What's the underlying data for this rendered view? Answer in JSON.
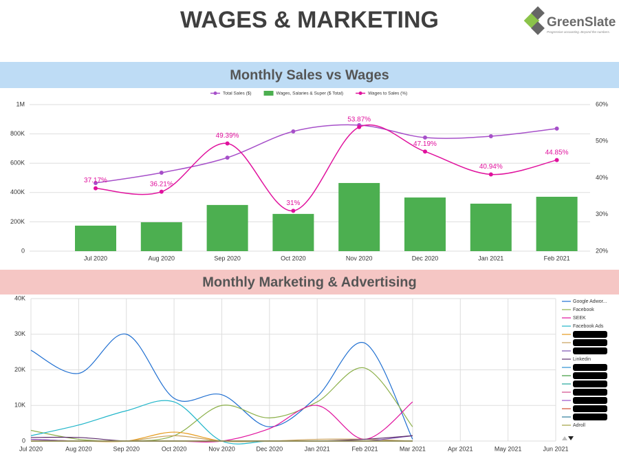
{
  "header": {
    "title": "WAGES & MARKETING",
    "logo": "GreenSlate",
    "tagline": "Progressive accounting. Beyond the numbers."
  },
  "chart_data": [
    {
      "type": "combo",
      "title": "Monthly Sales vs Wages",
      "categories": [
        "Jul 2020",
        "Aug 2020",
        "Sep 2020",
        "Oct 2020",
        "Nov 2020",
        "Dec 2020",
        "Jan 2021",
        "Feb 2021"
      ],
      "series": [
        {
          "name": "Total Sales ($)",
          "color": "#a64fc9",
          "kind": "line",
          "values": [
            465000,
            535000,
            638000,
            817000,
            860000,
            775000,
            784000,
            836000
          ]
        },
        {
          "name": "Wages, Salaries & Super ($ Total)",
          "color": "#4caf50",
          "kind": "bar",
          "values": [
            174000,
            197000,
            315000,
            254000,
            465000,
            366000,
            324000,
            371000
          ]
        },
        {
          "name": "Wages to Sales (%)",
          "color": "#e0119d",
          "kind": "line",
          "axis": "y2",
          "values": [
            37.17,
            36.21,
            49.39,
            31,
            53.87,
            47.19,
            40.94,
            44.85
          ],
          "value_labels": [
            "37.17%",
            "36.21%",
            "49.39%",
            "31%",
            "53.87%",
            "47.19%",
            "40.94%",
            "44.85%"
          ]
        }
      ],
      "ylim": [
        0,
        1000000
      ],
      "yticks": [
        0,
        {
          "value": 200000,
          "label": "200K"
        },
        {
          "value": 400000,
          "label": "400K"
        },
        {
          "value": 600000,
          "label": "600K"
        },
        {
          "value": 800000,
          "label": "800K"
        },
        {
          "value": 1000000,
          "label": "1M"
        }
      ],
      "y2lim": [
        20,
        60
      ],
      "y2ticks": [
        {
          "value": 20,
          "label": "20%"
        },
        {
          "value": 30,
          "label": "30%"
        },
        {
          "value": 40,
          "label": "40%"
        },
        {
          "value": 50,
          "label": "50%"
        },
        {
          "value": 60,
          "label": "60%"
        }
      ],
      "grid": true,
      "legend": "top"
    },
    {
      "type": "line",
      "title": "Monthly Marketing & Advertising",
      "categories": [
        "Jul 2020",
        "Aug 2020",
        "Sep 2020",
        "Oct 2020",
        "Nov 2020",
        "Dec 2020",
        "Jan 2021",
        "Feb 2021",
        "Mar 2021",
        "Apr 2021",
        "May 2021",
        "Jun 2021"
      ],
      "series": [
        {
          "name": "Google Adwor...",
          "color": "#1f6fd1",
          "values": [
            25500,
            19000,
            30000,
            12000,
            13000,
            4000,
            12500,
            27500,
            500,
            null,
            null,
            null
          ]
        },
        {
          "name": "Facebook",
          "color": "#8cb04a",
          "values": [
            3000,
            500,
            0,
            1500,
            10000,
            6500,
            11000,
            20500,
            4000,
            null,
            null,
            null
          ]
        },
        {
          "name": "SEEK",
          "color": "#e0119d",
          "values": [
            500,
            0,
            0,
            0,
            0,
            3500,
            10000,
            500,
            11000,
            null,
            null,
            null
          ]
        },
        {
          "name": "Facebook Ads",
          "color": "#1fb5c9",
          "values": [
            1500,
            4500,
            8500,
            11000,
            0,
            0,
            0,
            0,
            0,
            null,
            null,
            null
          ]
        },
        {
          "name": null,
          "color": "#e69a1a",
          "values": [
            0,
            0,
            0,
            2500,
            0,
            0,
            0,
            0,
            0,
            null,
            null,
            null
          ]
        },
        {
          "name": null,
          "color": "#c9a15a",
          "values": [
            0,
            0,
            0,
            1500,
            0,
            0,
            500,
            500,
            0,
            null,
            null,
            null
          ]
        },
        {
          "name": null,
          "color": "#7a4fb0",
          "values": [
            500,
            0,
            0,
            0,
            0,
            0,
            0,
            0,
            1500,
            null,
            null,
            null
          ]
        },
        {
          "name": "Linkedin",
          "color": "#5a2a6a",
          "values": [
            1000,
            1000,
            0,
            0,
            0,
            0,
            0,
            500,
            1500,
            null,
            null,
            null
          ]
        },
        {
          "name": null,
          "color": "#2a8fd1",
          "values": [
            0,
            0,
            0,
            0,
            0,
            0,
            0,
            0,
            0,
            null,
            null,
            null
          ]
        },
        {
          "name": null,
          "color": "#3a9a3a",
          "values": [
            0,
            0,
            0,
            0,
            0,
            0,
            0,
            0,
            0,
            null,
            null,
            null
          ]
        },
        {
          "name": null,
          "color": "#1fa59a",
          "values": [
            0,
            0,
            0,
            0,
            0,
            0,
            0,
            0,
            0,
            null,
            null,
            null
          ]
        },
        {
          "name": null,
          "color": "#d14a8a",
          "values": [
            0,
            0,
            0,
            0,
            0,
            0,
            0,
            0,
            0,
            null,
            null,
            null
          ]
        },
        {
          "name": null,
          "color": "#9a4fc9",
          "values": [
            0,
            0,
            0,
            0,
            0,
            0,
            0,
            0,
            0,
            null,
            null,
            null
          ]
        },
        {
          "name": null,
          "color": "#d14a2a",
          "values": [
            0,
            0,
            0,
            0,
            0,
            0,
            0,
            0,
            0,
            null,
            null,
            null
          ]
        },
        {
          "name": null,
          "color": "#2a7a9a",
          "values": [
            0,
            0,
            0,
            0,
            0,
            0,
            0,
            0,
            0,
            null,
            null,
            null
          ]
        },
        {
          "name": "Adroll",
          "color": "#a0a040",
          "values": [
            0,
            0,
            0,
            0,
            0,
            0,
            0,
            0,
            0,
            null,
            null,
            null
          ]
        }
      ],
      "ylim": [
        0,
        40000
      ],
      "yticks": [
        0,
        {
          "value": 10000,
          "label": "10K"
        },
        {
          "value": 20000,
          "label": "20K"
        },
        {
          "value": 30000,
          "label": "30K"
        },
        {
          "value": 40000,
          "label": "40K"
        }
      ],
      "grid": true,
      "legend": "right"
    }
  ]
}
